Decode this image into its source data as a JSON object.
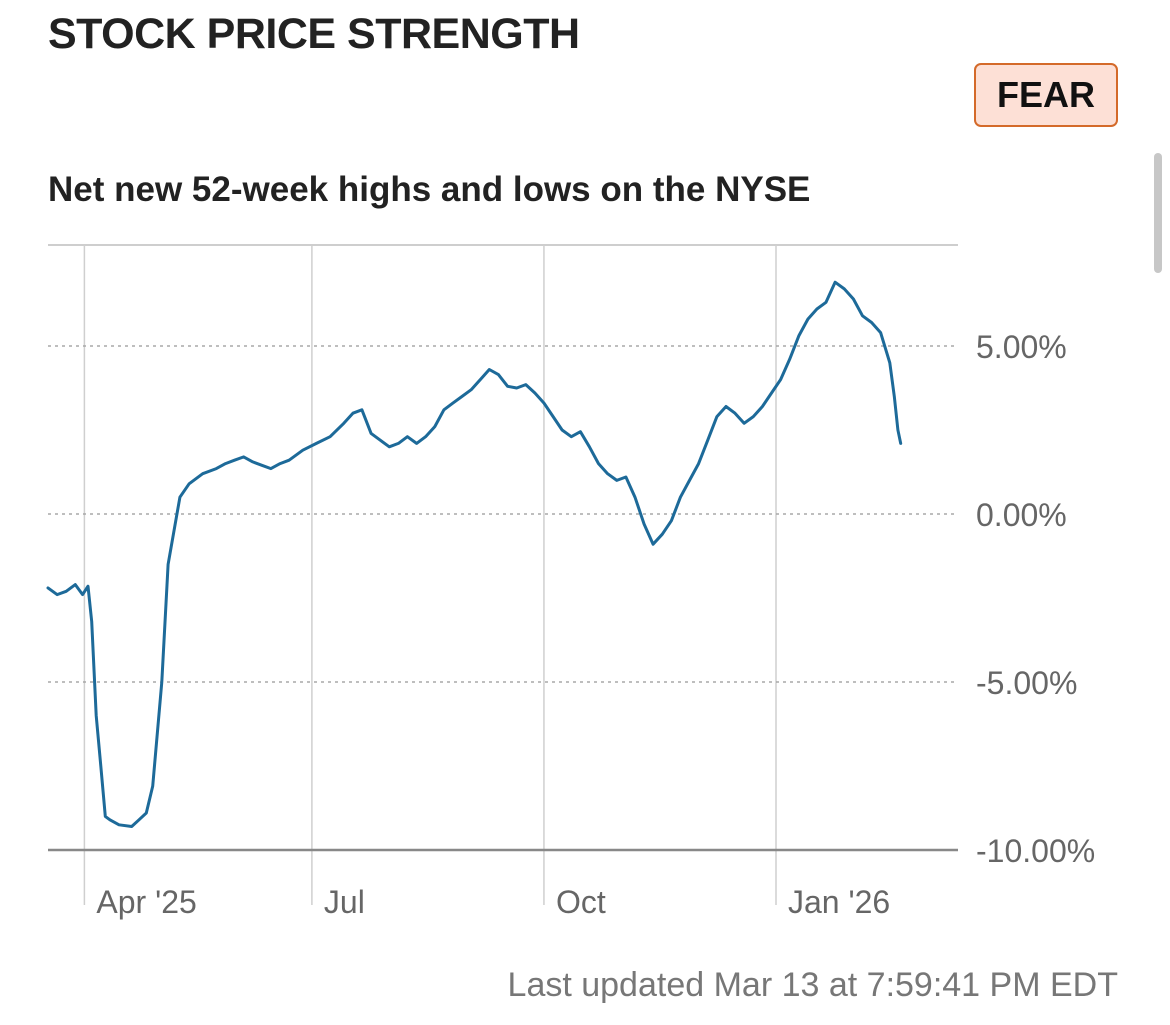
{
  "header": {
    "title": "STOCK PRICE STRENGTH",
    "rating_badge": "FEAR"
  },
  "footer": {
    "last_updated": "Last updated Mar 13 at 7:59:41 PM EDT"
  },
  "colors": {
    "line": "#1d6a99",
    "badge_border": "#d46a2a",
    "badge_bg": "#fde0d6"
  },
  "chart_data": {
    "type": "line",
    "title": "Net new 52-week highs and lows on the NYSE",
    "xlabel": "",
    "ylabel": "",
    "x_ticks": [
      {
        "label": "Apr '25",
        "value": 0.04
      },
      {
        "label": "Jul",
        "value": 0.29
      },
      {
        "label": "Oct",
        "value": 0.545
      },
      {
        "label": "Jan '26",
        "value": 0.8
      }
    ],
    "y_ticks": [
      {
        "label": "5.00%",
        "value": 5
      },
      {
        "label": "0.00%",
        "value": 0
      },
      {
        "label": "-5.00%",
        "value": -5
      },
      {
        "label": "-10.00%",
        "value": -10
      }
    ],
    "xlim": [
      0,
      1
    ],
    "ylim": [
      -10,
      8
    ],
    "series": [
      {
        "name": "Net new highs/lows",
        "points": [
          [
            0.0,
            -2.2
          ],
          [
            0.01,
            -2.4
          ],
          [
            0.02,
            -2.3
          ],
          [
            0.03,
            -2.1
          ],
          [
            0.038,
            -2.4
          ],
          [
            0.044,
            -2.15
          ],
          [
            0.048,
            -3.2
          ],
          [
            0.053,
            -6.0
          ],
          [
            0.058,
            -7.5
          ],
          [
            0.063,
            -9.0
          ],
          [
            0.068,
            -9.1
          ],
          [
            0.078,
            -9.25
          ],
          [
            0.092,
            -9.3
          ],
          [
            0.1,
            -9.1
          ],
          [
            0.108,
            -8.9
          ],
          [
            0.115,
            -8.1
          ],
          [
            0.125,
            -5.0
          ],
          [
            0.132,
            -1.5
          ],
          [
            0.145,
            0.5
          ],
          [
            0.155,
            0.9
          ],
          [
            0.17,
            1.2
          ],
          [
            0.185,
            1.35
          ],
          [
            0.195,
            1.5
          ],
          [
            0.205,
            1.6
          ],
          [
            0.215,
            1.7
          ],
          [
            0.225,
            1.55
          ],
          [
            0.235,
            1.45
          ],
          [
            0.245,
            1.35
          ],
          [
            0.255,
            1.5
          ],
          [
            0.265,
            1.6
          ],
          [
            0.28,
            1.9
          ],
          [
            0.295,
            2.1
          ],
          [
            0.31,
            2.3
          ],
          [
            0.325,
            2.7
          ],
          [
            0.335,
            3.0
          ],
          [
            0.345,
            3.1
          ],
          [
            0.355,
            2.4
          ],
          [
            0.365,
            2.2
          ],
          [
            0.375,
            2.0
          ],
          [
            0.385,
            2.1
          ],
          [
            0.395,
            2.3
          ],
          [
            0.405,
            2.1
          ],
          [
            0.415,
            2.3
          ],
          [
            0.425,
            2.6
          ],
          [
            0.435,
            3.1
          ],
          [
            0.445,
            3.3
          ],
          [
            0.455,
            3.5
          ],
          [
            0.465,
            3.7
          ],
          [
            0.475,
            4.0
          ],
          [
            0.485,
            4.3
          ],
          [
            0.495,
            4.15
          ],
          [
            0.505,
            3.8
          ],
          [
            0.515,
            3.75
          ],
          [
            0.525,
            3.85
          ],
          [
            0.535,
            3.6
          ],
          [
            0.545,
            3.3
          ],
          [
            0.555,
            2.9
          ],
          [
            0.565,
            2.5
          ],
          [
            0.575,
            2.3
          ],
          [
            0.585,
            2.45
          ],
          [
            0.595,
            2.0
          ],
          [
            0.605,
            1.5
          ],
          [
            0.615,
            1.2
          ],
          [
            0.625,
            1.0
          ],
          [
            0.635,
            1.1
          ],
          [
            0.645,
            0.5
          ],
          [
            0.655,
            -0.3
          ],
          [
            0.665,
            -0.9
          ],
          [
            0.675,
            -0.6
          ],
          [
            0.685,
            -0.2
          ],
          [
            0.695,
            0.5
          ],
          [
            0.705,
            1.0
          ],
          [
            0.715,
            1.5
          ],
          [
            0.725,
            2.2
          ],
          [
            0.735,
            2.9
          ],
          [
            0.745,
            3.2
          ],
          [
            0.755,
            3.0
          ],
          [
            0.765,
            2.7
          ],
          [
            0.775,
            2.9
          ],
          [
            0.785,
            3.2
          ],
          [
            0.795,
            3.6
          ],
          [
            0.805,
            4.0
          ],
          [
            0.815,
            4.6
          ],
          [
            0.825,
            5.3
          ],
          [
            0.835,
            5.8
          ],
          [
            0.845,
            6.1
          ],
          [
            0.855,
            6.3
          ],
          [
            0.865,
            6.9
          ],
          [
            0.875,
            6.7
          ],
          [
            0.885,
            6.4
          ],
          [
            0.895,
            5.9
          ],
          [
            0.905,
            5.7
          ],
          [
            0.915,
            5.4
          ],
          [
            0.925,
            4.5
          ],
          [
            0.93,
            3.5
          ],
          [
            0.934,
            2.5
          ],
          [
            0.937,
            2.1
          ]
        ]
      }
    ]
  }
}
